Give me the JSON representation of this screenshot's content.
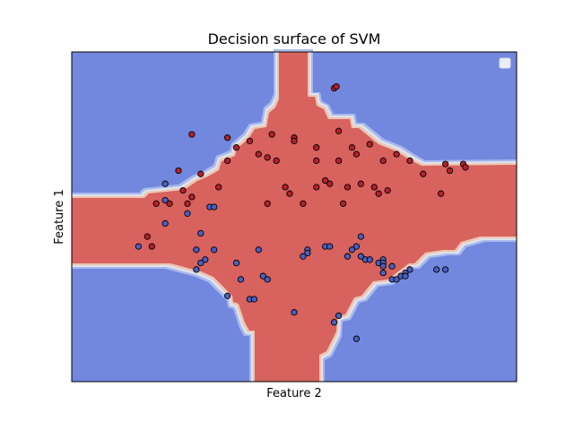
{
  "chart_data": {
    "type": "scatter",
    "title": "Decision surface of SVM",
    "xlabel": "Feature 2",
    "ylabel": "Feature 1",
    "xlim": [
      0,
      100
    ],
    "ylim": [
      0,
      100
    ],
    "ticks_shown": false,
    "grid": false,
    "legend": "top-right (empty)",
    "background": {
      "description": "filled decision-surface contour",
      "class_colors": {
        "class_0": "#7288de",
        "class_1": "#d8625e"
      },
      "boundary_colors": [
        "#a8b9ee",
        "#dfe3ea",
        "#eec4b3"
      ],
      "class_1_region": "cross-shaped band: vertical strip x≈40–57 and horizontal strip y≈42–57 widening toward center",
      "class_0_regions": [
        "top-left",
        "top-right",
        "bottom-left",
        "bottom-right"
      ]
    },
    "series": [
      {
        "color": "#b2212a",
        "points": [
          [
            59,
            89
          ],
          [
            59.5,
            89.5
          ],
          [
            27,
            75
          ],
          [
            35,
            74
          ],
          [
            45,
            75
          ],
          [
            50,
            74
          ],
          [
            60,
            76
          ],
          [
            50,
            73
          ],
          [
            40,
            73
          ],
          [
            37,
            71
          ],
          [
            44,
            68
          ],
          [
            55,
            71
          ],
          [
            63,
            71
          ],
          [
            67,
            72
          ],
          [
            64,
            69
          ],
          [
            73,
            69
          ],
          [
            55,
            67
          ],
          [
            42,
            69
          ],
          [
            46,
            67
          ],
          [
            60,
            67
          ],
          [
            70,
            67
          ],
          [
            35,
            67
          ],
          [
            29,
            63
          ],
          [
            24,
            64
          ],
          [
            33,
            59
          ],
          [
            48,
            59
          ],
          [
            49,
            57
          ],
          [
            57,
            61
          ],
          [
            58,
            60
          ],
          [
            55,
            59
          ],
          [
            65,
            60
          ],
          [
            62,
            59
          ],
          [
            68,
            59
          ],
          [
            69,
            57
          ],
          [
            76,
            67
          ],
          [
            79,
            63
          ],
          [
            84,
            66
          ],
          [
            85,
            64
          ],
          [
            88,
            66
          ],
          [
            88.5,
            65
          ],
          [
            83,
            57
          ],
          [
            71,
            58
          ],
          [
            61,
            54
          ],
          [
            52,
            54
          ],
          [
            44,
            54
          ],
          [
            25,
            58
          ],
          [
            27,
            56
          ],
          [
            22,
            54
          ],
          [
            26,
            54
          ],
          [
            19,
            54
          ],
          [
            17,
            44
          ],
          [
            18,
            41
          ]
        ]
      },
      {
        "color": "#4a5fbd",
        "points": [
          [
            21,
            60
          ],
          [
            21,
            55
          ],
          [
            31,
            53
          ],
          [
            32,
            53
          ],
          [
            26,
            51
          ],
          [
            21,
            48
          ],
          [
            29,
            45
          ],
          [
            15,
            41
          ],
          [
            28,
            40
          ],
          [
            32,
            40
          ],
          [
            30,
            37
          ],
          [
            29,
            36
          ],
          [
            37,
            36
          ],
          [
            28,
            34
          ],
          [
            42,
            40
          ],
          [
            53,
            40
          ],
          [
            57,
            41
          ],
          [
            53,
            39
          ],
          [
            52,
            38
          ],
          [
            58,
            41
          ],
          [
            64,
            41
          ],
          [
            65,
            44
          ],
          [
            63,
            40
          ],
          [
            62,
            38
          ],
          [
            65,
            38
          ],
          [
            66,
            37
          ],
          [
            67,
            37
          ],
          [
            69,
            36
          ],
          [
            70,
            37
          ],
          [
            70,
            36
          ],
          [
            70,
            35
          ],
          [
            72,
            35
          ],
          [
            70,
            33
          ],
          [
            72,
            31
          ],
          [
            73,
            31
          ],
          [
            74,
            32
          ],
          [
            75,
            33
          ],
          [
            76,
            34
          ],
          [
            75,
            32
          ],
          [
            82,
            34
          ],
          [
            84,
            34
          ],
          [
            43,
            32
          ],
          [
            38,
            31
          ],
          [
            44,
            31
          ],
          [
            35,
            26
          ],
          [
            40,
            25
          ],
          [
            41,
            25
          ],
          [
            50,
            21
          ],
          [
            60,
            20
          ],
          [
            59,
            18
          ],
          [
            64,
            13
          ]
        ]
      }
    ]
  }
}
